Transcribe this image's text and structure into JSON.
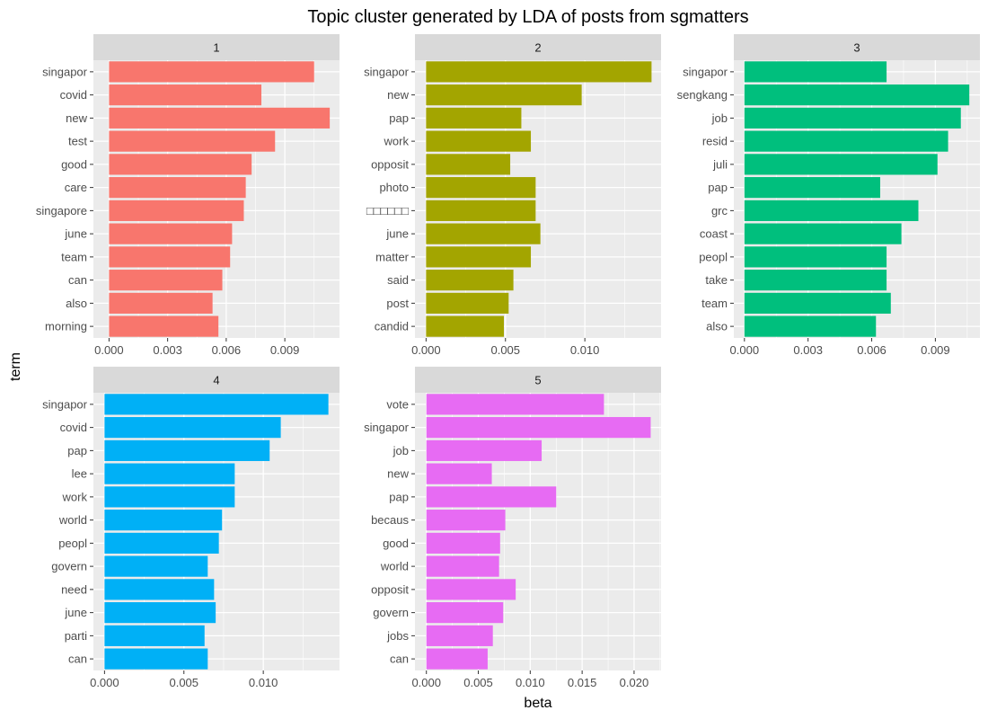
{
  "title": "Topic cluster generated by LDA of posts from sgmatters",
  "chart_data": {
    "type": "bar",
    "orientation": "horizontal",
    "faceted": true,
    "title": "Topic cluster generated by LDA of posts from sgmatters",
    "xlabel": "beta",
    "ylabel": "term",
    "grid": true,
    "legend": "none",
    "panel_background": "#ebebeb",
    "strip_background": "#d9d9d9",
    "facets": [
      {
        "label": "1",
        "color": "#f8766d",
        "terms": [
          "singapor",
          "covid",
          "new",
          "test",
          "good",
          "care",
          "singapore",
          "june",
          "team",
          "can",
          "also",
          "morning"
        ],
        "values": [
          0.0105,
          0.0078,
          0.0113,
          0.0085,
          0.0073,
          0.007,
          0.0069,
          0.0063,
          0.0062,
          0.0058,
          0.0053,
          0.0056
        ],
        "xlim": [
          -0.0008,
          0.0118
        ],
        "xticks": [
          0,
          0.003,
          0.006,
          0.009
        ],
        "xtick_labels": [
          "0.000",
          "0.003",
          "0.006",
          "0.009"
        ]
      },
      {
        "label": "2",
        "color": "#a3a500",
        "terms": [
          "singapor",
          "new",
          "pap",
          "work",
          "opposit",
          "photo",
          "□□□□□□",
          "june",
          "matter",
          "said",
          "post",
          "candid"
        ],
        "values": [
          0.0142,
          0.0098,
          0.006,
          0.0066,
          0.0053,
          0.0069,
          0.0069,
          0.0072,
          0.0066,
          0.0055,
          0.0052,
          0.0049
        ],
        "xlim": [
          -0.0007,
          0.0148
        ],
        "xticks": [
          0,
          0.005,
          0.01
        ],
        "xtick_labels": [
          "0.000",
          "0.005",
          "0.010"
        ]
      },
      {
        "label": "3",
        "color": "#00bf7d",
        "terms": [
          "singapor",
          "sengkang",
          "job",
          "resid",
          "juli",
          "pap",
          "grc",
          "coast",
          "peopl",
          "take",
          "team",
          "also"
        ],
        "values": [
          0.0067,
          0.0106,
          0.0102,
          0.0096,
          0.0091,
          0.0064,
          0.0082,
          0.0074,
          0.0067,
          0.0067,
          0.0069,
          0.0062
        ],
        "xlim": [
          -0.0005,
          0.0111
        ],
        "xticks": [
          0,
          0.003,
          0.006,
          0.009
        ],
        "xtick_labels": [
          "0.000",
          "0.003",
          "0.006",
          "0.009"
        ]
      },
      {
        "label": "4",
        "color": "#00b0f6",
        "terms": [
          "singapor",
          "covid",
          "pap",
          "lee",
          "work",
          "world",
          "peopl",
          "govern",
          "need",
          "june",
          "parti",
          "can"
        ],
        "values": [
          0.0141,
          0.0111,
          0.0104,
          0.0082,
          0.0082,
          0.0074,
          0.0072,
          0.0065,
          0.0069,
          0.007,
          0.0063,
          0.0065
        ],
        "xlim": [
          -0.0007,
          0.0148
        ],
        "xticks": [
          0,
          0.005,
          0.01
        ],
        "xtick_labels": [
          "0.000",
          "0.005",
          "0.010"
        ]
      },
      {
        "label": "5",
        "color": "#e76bf3",
        "terms": [
          "vote",
          "singapor",
          "job",
          "new",
          "pap",
          "becaus",
          "good",
          "world",
          "opposit",
          "govern",
          "jobs",
          "can"
        ],
        "values": [
          0.0171,
          0.0216,
          0.0111,
          0.0063,
          0.0125,
          0.0076,
          0.0071,
          0.007,
          0.0086,
          0.0074,
          0.0064,
          0.0059
        ],
        "xlim": [
          -0.0011,
          0.0226
        ],
        "xticks": [
          0,
          0.005,
          0.01,
          0.015,
          0.02
        ],
        "xtick_labels": [
          "0.000",
          "0.005",
          "0.010",
          "0.015",
          "0.020"
        ]
      }
    ]
  }
}
